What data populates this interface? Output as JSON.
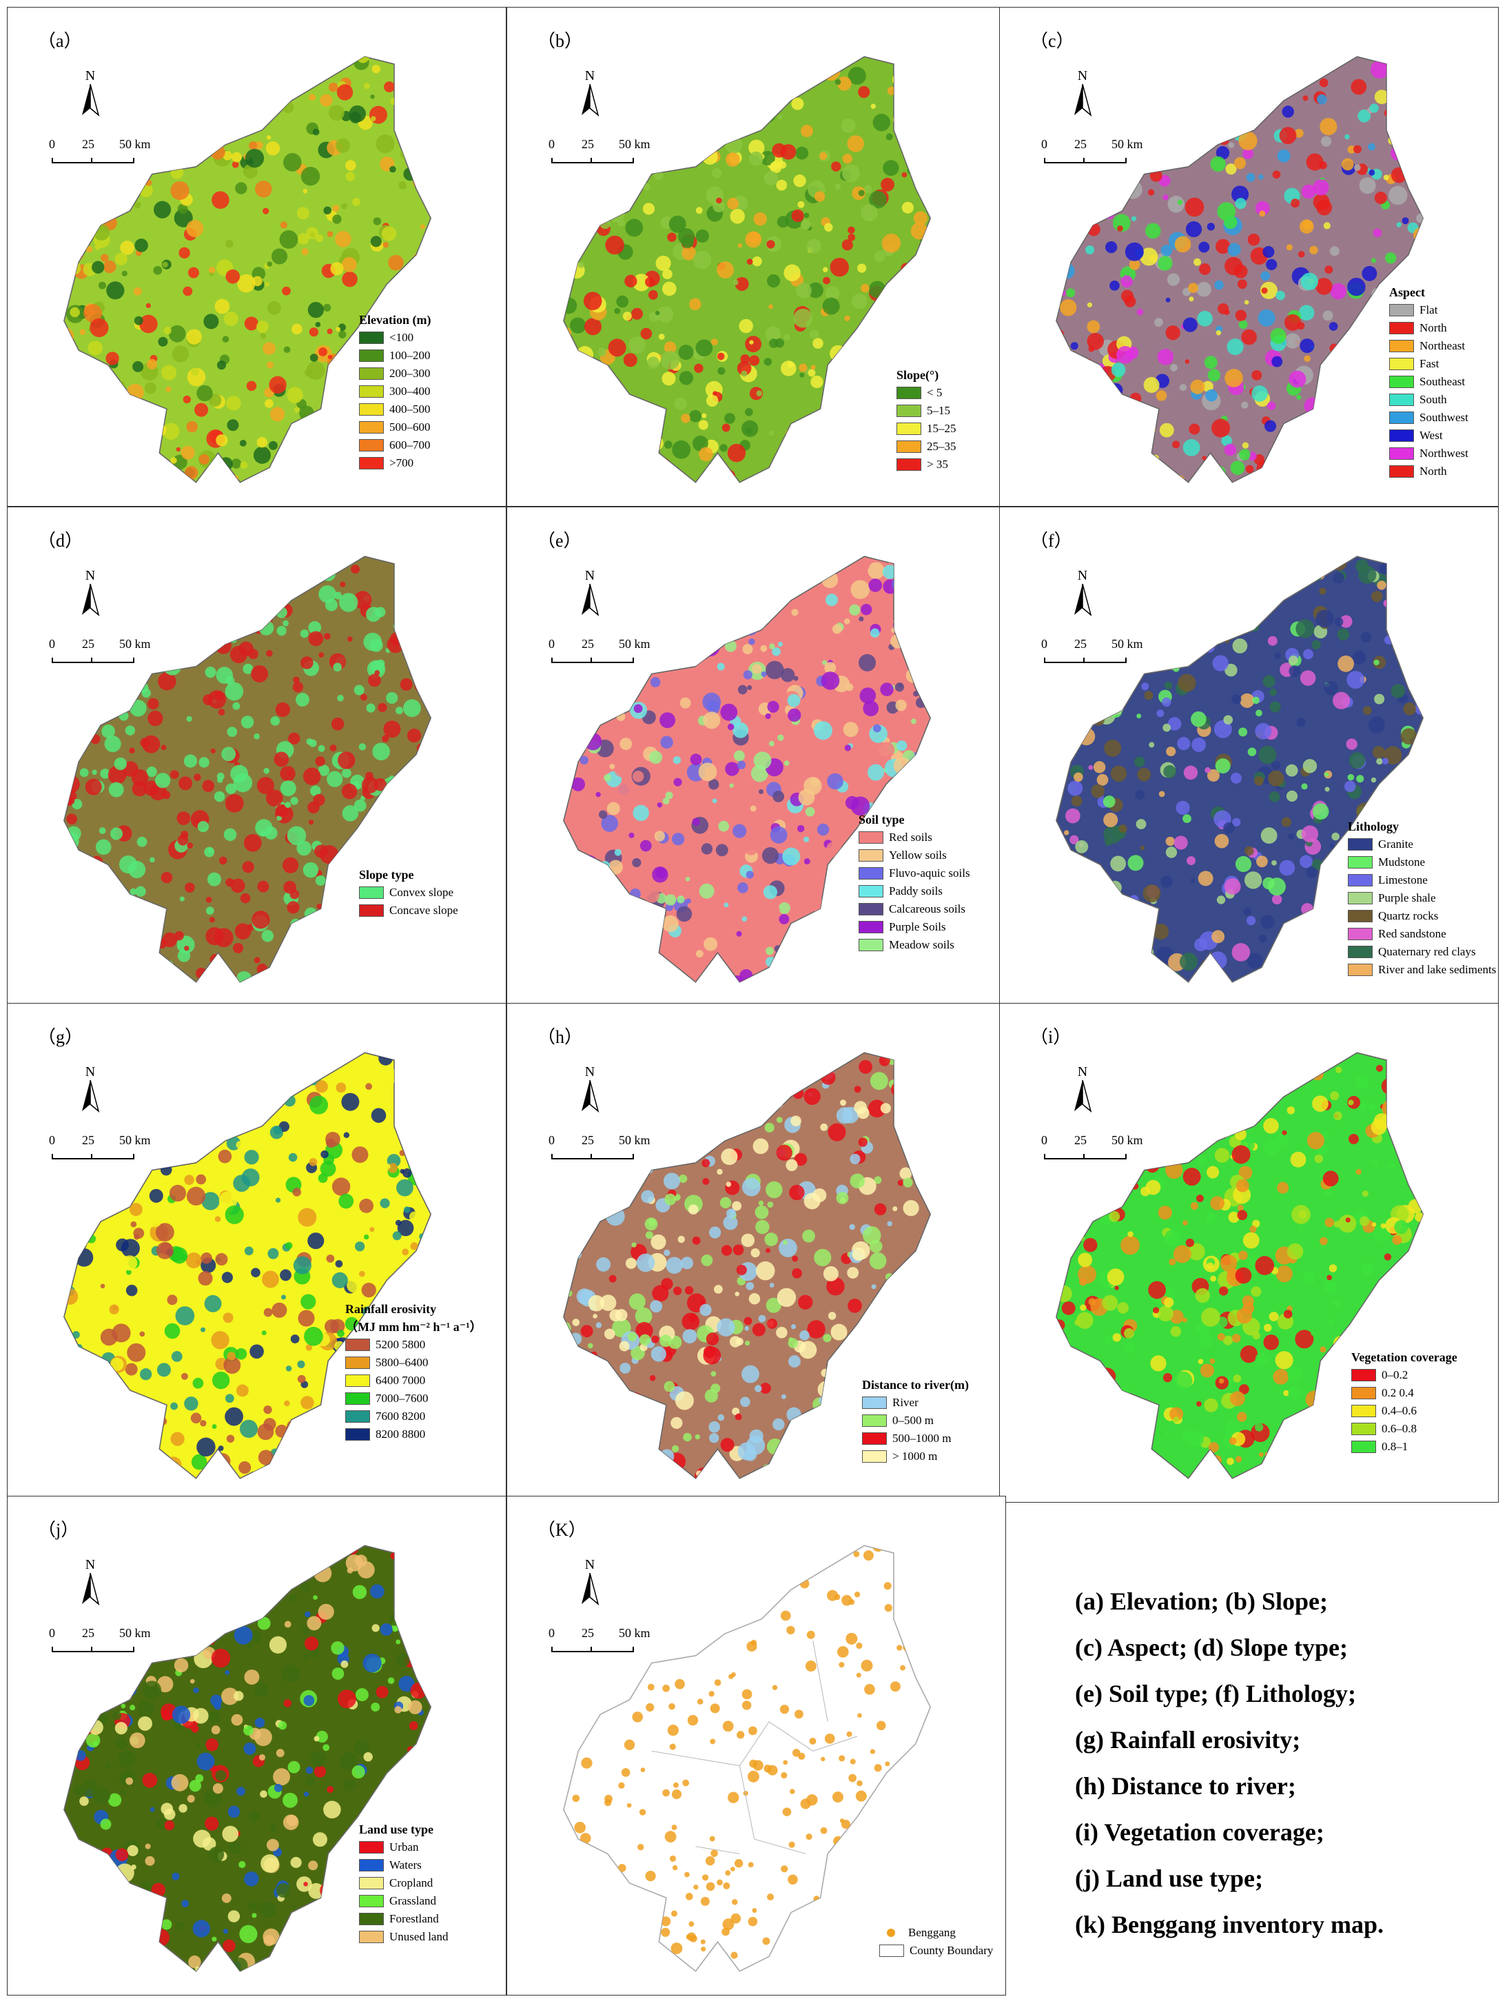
{
  "captions": [
    "(a) Elevation; (b) Slope;",
    "(c) Aspect;       (d) Slope type;",
    "(e) Soil type;    (f) Lithology;",
    "(g) Rainfall erosivity;",
    "(h) Distance to river;",
    "(i) Vegetation coverage;",
    "(j) Land use type;",
    "(k) Benggang inventory map."
  ],
  "panels": [
    {
      "label": "（a）",
      "base": "#9acd32",
      "legend": {
        "title": "Elevation (m)",
        "items": [
          {
            "label": "<100",
            "color": "#1f6b1f"
          },
          {
            "label": "100–200",
            "color": "#4a8f1a"
          },
          {
            "label": "200–300",
            "color": "#8ab81e"
          },
          {
            "label": "300–400",
            "color": "#c8d91e"
          },
          {
            "label": "400–500",
            "color": "#f0e020"
          },
          {
            "label": "500–600",
            "color": "#f5a623"
          },
          {
            "label": "600–700",
            "color": "#f07a1e"
          },
          {
            "label": ">700",
            "color": "#ee2b1b"
          }
        ]
      }
    },
    {
      "label": "（b）",
      "base": "#7ebb2e",
      "legend": {
        "title": "Slope(°)",
        "items": [
          {
            "label": "< 5",
            "color": "#3e8e1e"
          },
          {
            "label": "5–15",
            "color": "#8cc63f"
          },
          {
            "label": "15–25",
            "color": "#f2ee3a"
          },
          {
            "label": "25–35",
            "color": "#f5a623"
          },
          {
            "label": "> 35",
            "color": "#e8201b"
          }
        ]
      }
    },
    {
      "label": "（c）",
      "base": "#9a7a8a",
      "legend": {
        "title": "Aspect",
        "items": [
          {
            "label": "Flat",
            "color": "#aaaaaa"
          },
          {
            "label": "North",
            "color": "#e8201b"
          },
          {
            "label": "Northeast",
            "color": "#f5a623"
          },
          {
            "label": "Fast",
            "color": "#f2ee3a"
          },
          {
            "label": "Southeast",
            "color": "#3ce23c"
          },
          {
            "label": "South",
            "color": "#3ce2c8"
          },
          {
            "label": "Southwest",
            "color": "#2f9de0"
          },
          {
            "label": "West",
            "color": "#1a1ad0"
          },
          {
            "label": "Northwest",
            "color": "#e030e0"
          },
          {
            "label": "North",
            "color": "#e8201b"
          }
        ]
      }
    },
    {
      "label": "（d）",
      "base": "#8a7a3a",
      "legend": {
        "title": "Slope type",
        "items": [
          {
            "label": "Convex slope",
            "color": "#55e87a"
          },
          {
            "label": "Concave slope",
            "color": "#d81e1e"
          }
        ]
      }
    },
    {
      "label": "（e）",
      "base": "#f08080",
      "legend": {
        "title": "Soil type",
        "items": [
          {
            "label": "Red soils",
            "color": "#f08080"
          },
          {
            "label": "Yellow soils",
            "color": "#f5c98a"
          },
          {
            "label": "Fluvo-aquic soils",
            "color": "#6a6ae8"
          },
          {
            "label": "Paddy soils",
            "color": "#6ae8e8"
          },
          {
            "label": "Calcareous soils",
            "color": "#5a4a8a"
          },
          {
            "label": "Purple Soils",
            "color": "#9a1ad0"
          },
          {
            "label": "Meadow soils",
            "color": "#9aee8a"
          }
        ]
      }
    },
    {
      "label": "（f）",
      "base": "#3a4a8a",
      "legend": {
        "title": "Lithology",
        "items": [
          {
            "label": "Granite",
            "color": "#2e3e8a"
          },
          {
            "label": "Mudstone",
            "color": "#66ee66"
          },
          {
            "label": "Limestone",
            "color": "#6a6ae8"
          },
          {
            "label": "Purple shale",
            "color": "#a8d88a"
          },
          {
            "label": "Quartz rocks",
            "color": "#6e5a2e"
          },
          {
            "label": "Red sandstone",
            "color": "#e060d0"
          },
          {
            "label": "Quaternary red clays",
            "color": "#2e6e4e"
          },
          {
            "label": "River and lake sediments",
            "color": "#f0b060"
          }
        ]
      }
    },
    {
      "label": "（g）",
      "base": "#f5f520",
      "legend": {
        "title": "Rainfall erosivity",
        "subtitle": "（MJ mm hm⁻² h⁻¹ a⁻¹）",
        "items": [
          {
            "label": "5200  5800",
            "color": "#c0553a"
          },
          {
            "label": "5800–6400",
            "color": "#e89a20"
          },
          {
            "label": "6400  7000",
            "color": "#f5f520"
          },
          {
            "label": "7000–7600",
            "color": "#20cc20"
          },
          {
            "label": "7600  8200",
            "color": "#20968a"
          },
          {
            "label": "8200  8800",
            "color": "#102a7a"
          }
        ]
      }
    },
    {
      "label": "（h）",
      "base": "#b07a60",
      "legend": {
        "title": "Distance to river(m)",
        "items": [
          {
            "label": "River",
            "color": "#9ad0f0"
          },
          {
            "label": "0–500 m",
            "color": "#9aee6a"
          },
          {
            "label": "500–1000 m",
            "color": "#e8101b"
          },
          {
            "label": "> 1000 m",
            "color": "#fff3b0"
          }
        ]
      }
    },
    {
      "label": "（i）",
      "base": "#3cdc3c",
      "legend": {
        "title": "Vegetation coverage",
        "items": [
          {
            "label": "0–0.2",
            "color": "#e8101b"
          },
          {
            "label": "0.2  0.4",
            "color": "#f0901e"
          },
          {
            "label": "0.4–0.6",
            "color": "#f5e820"
          },
          {
            "label": "0.6–0.8",
            "color": "#a8e020"
          },
          {
            "label": "0.8–1",
            "color": "#3ce23c"
          }
        ]
      }
    },
    {
      "label": "（j）",
      "base": "#4a6a10",
      "legend": {
        "title": "Land use type",
        "items": [
          {
            "label": "Urban",
            "color": "#e8101b"
          },
          {
            "label": "Waters",
            "color": "#1a5ad0"
          },
          {
            "label": "Cropland",
            "color": "#f5ee8a"
          },
          {
            "label": "Grassland",
            "color": "#6aee3a"
          },
          {
            "label": "Forestland",
            "color": "#3e6a10"
          },
          {
            "label": "Unused land",
            "color": "#f0c070"
          }
        ]
      }
    },
    {
      "label": "（K）",
      "base": "#ffffff",
      "legend": {
        "title": "",
        "items": [
          {
            "label": "Benggang",
            "color": "#f0a020"
          },
          {
            "label": "County Boundary",
            "color": "#ffffff"
          }
        ]
      }
    }
  ],
  "scale": {
    "t0": "0",
    "t1": "25",
    "t2": "50 km"
  },
  "north": "N"
}
